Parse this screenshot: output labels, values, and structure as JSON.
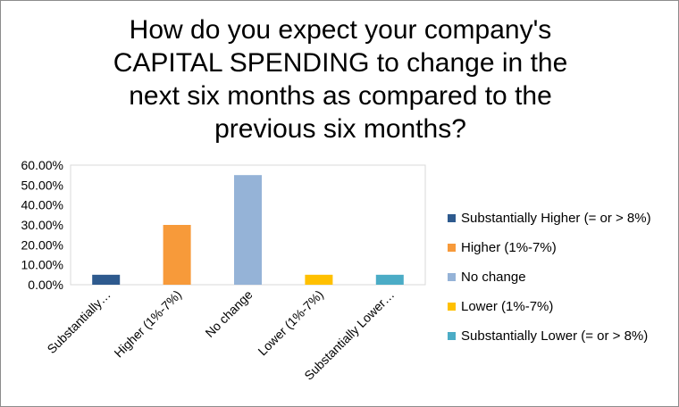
{
  "chart_data": {
    "type": "bar",
    "title": "How do you expect your company's\nCAPITAL SPENDING to change in the\nnext six months as compared to the\nprevious six months?",
    "xlabel": "",
    "ylabel": "",
    "ylim": [
      0,
      0.6
    ],
    "yticks": [
      "0.00%",
      "10.00%",
      "20.00%",
      "30.00%",
      "40.00%",
      "50.00%",
      "60.00%"
    ],
    "grid": false,
    "legend_position": "right",
    "categories": [
      "Substantially…",
      "Higher (1%-7%)",
      "No change",
      "Lower (1%-7%)",
      "Substantially Lower…"
    ],
    "values": [
      0.05,
      0.3,
      0.55,
      0.05,
      0.05
    ],
    "colors": [
      "#2e5a8e",
      "#f79a3a",
      "#95b3d7",
      "#ffc000",
      "#4bacc6"
    ],
    "legend": [
      "Substantially Higher (= or > 8%)",
      "Higher (1%-7%)",
      "No change",
      "Lower (1%-7%)",
      "Substantially Lower (= or > 8%)"
    ]
  }
}
